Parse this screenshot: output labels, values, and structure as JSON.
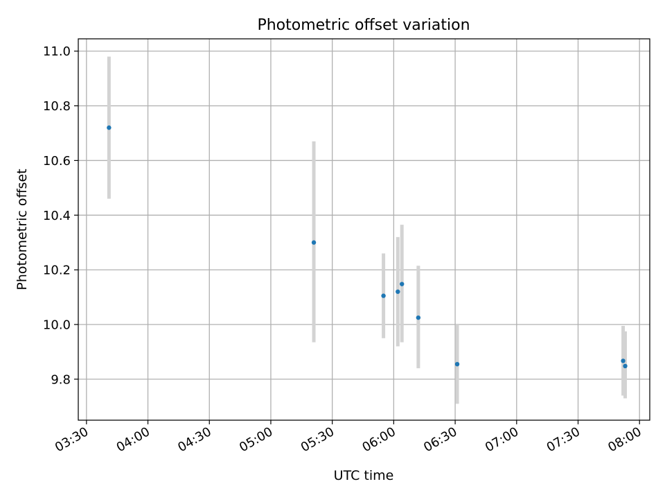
{
  "chart_data": {
    "type": "scatter",
    "title": "Photometric offset variation",
    "xlabel": "UTC time",
    "ylabel": "Photometric offset",
    "xlim": [
      "03:26",
      "08:05"
    ],
    "ylim": [
      9.65,
      11.045
    ],
    "x_ticks": [
      "03:30",
      "04:00",
      "04:30",
      "05:00",
      "05:30",
      "06:00",
      "06:30",
      "07:00",
      "07:30",
      "08:00"
    ],
    "y_ticks": [
      9.8,
      10.0,
      10.2,
      10.4,
      10.6,
      10.8,
      11.0
    ],
    "grid": true,
    "colors": {
      "marker": "#1f77b4",
      "errorbar": "#d3d3d3",
      "grid": "#b0b0b0"
    },
    "points": [
      {
        "time": "03:41",
        "y": 10.72,
        "y_low": 10.46,
        "y_high": 10.98
      },
      {
        "time": "05:21",
        "y": 10.3,
        "y_low": 9.935,
        "y_high": 10.67
      },
      {
        "time": "05:55",
        "y": 10.105,
        "y_low": 9.95,
        "y_high": 10.26
      },
      {
        "time": "06:02",
        "y": 10.12,
        "y_low": 9.92,
        "y_high": 10.32
      },
      {
        "time": "06:04",
        "y": 10.148,
        "y_low": 9.935,
        "y_high": 10.365
      },
      {
        "time": "06:12",
        "y": 10.025,
        "y_low": 9.84,
        "y_high": 10.215
      },
      {
        "time": "06:31",
        "y": 9.855,
        "y_low": 9.71,
        "y_high": 10.0
      },
      {
        "time": "07:52",
        "y": 9.867,
        "y_low": 9.74,
        "y_high": 9.995
      },
      {
        "time": "07:53",
        "y": 9.848,
        "y_low": 9.73,
        "y_high": 9.975
      }
    ]
  }
}
